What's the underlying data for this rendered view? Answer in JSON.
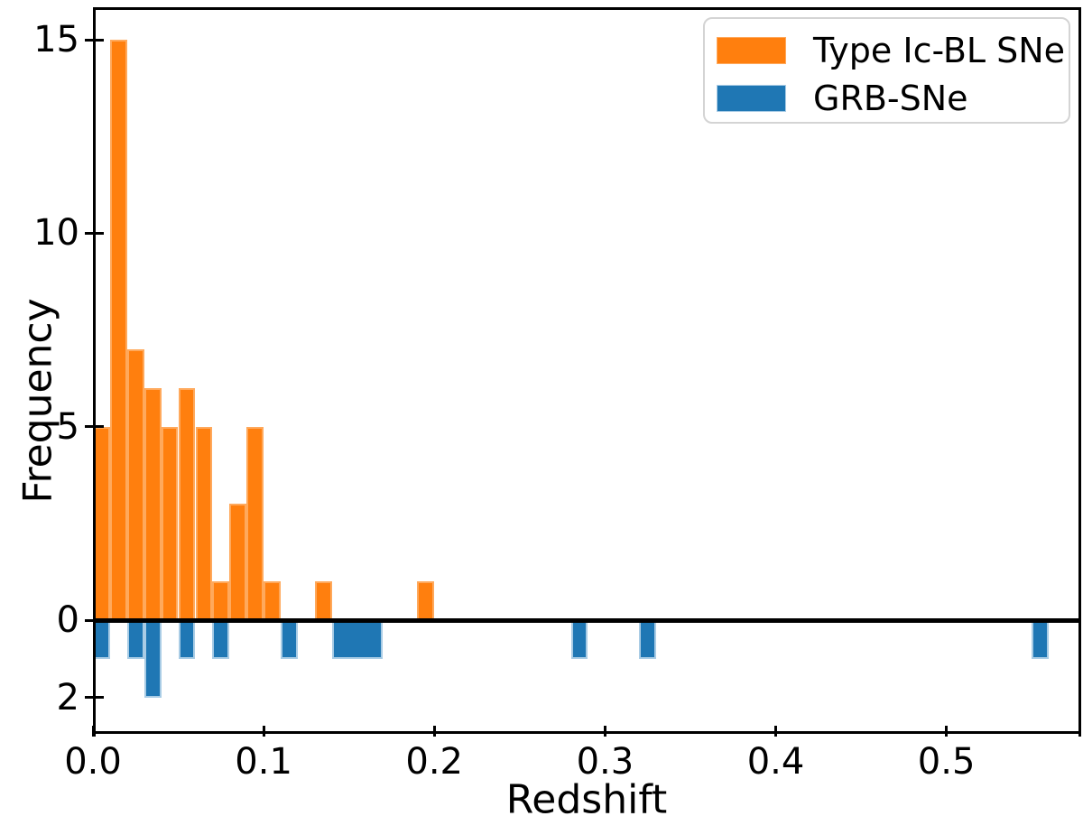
{
  "figure": {
    "background": "#ffffff",
    "xlabel": "Redshift",
    "ylabel": "Frequency",
    "x_ticks": [
      {
        "label": "0.0",
        "value": 0.0
      },
      {
        "label": "0.1",
        "value": 0.1
      },
      {
        "label": "0.2",
        "value": 0.2
      },
      {
        "label": "0.3",
        "value": 0.3
      },
      {
        "label": "0.4",
        "value": 0.4
      },
      {
        "label": "0.5",
        "value": 0.5
      }
    ],
    "y_ticks": [
      {
        "label": "15",
        "value": 15
      },
      {
        "label": "10",
        "value": 10
      },
      {
        "label": "5",
        "value": 5
      },
      {
        "label": "0",
        "value": 0
      },
      {
        "label": "2",
        "value": -2
      }
    ],
    "zero_line_color": "#000000",
    "spine_color": "#000000"
  },
  "legend": {
    "items": [
      {
        "label": "Type Ic-BL SNe",
        "color": "#ff7f0e",
        "edge": "#ffa95c"
      },
      {
        "label": "GRB-SNe",
        "color": "#1f77b4",
        "edge": "#a9cce5"
      }
    ]
  },
  "chart_data": {
    "type": "bar",
    "subtype": "mirrored-histogram",
    "title": "",
    "xlabel": "Redshift",
    "ylabel": "Frequency",
    "bin_width": 0.01,
    "xlim": [
      0.0,
      0.579
    ],
    "ylim": [
      -2.94,
      15.84
    ],
    "grid": false,
    "legend_position": "upper right",
    "series": [
      {
        "name": "Type Ic-BL SNe",
        "color": "#ff7f0e",
        "edge_color": "#ffa95c",
        "direction": "up",
        "bins": [
          {
            "x0": 0.0,
            "x1": 0.01,
            "count": 5
          },
          {
            "x0": 0.01,
            "x1": 0.02,
            "count": 15
          },
          {
            "x0": 0.02,
            "x1": 0.03,
            "count": 7
          },
          {
            "x0": 0.03,
            "x1": 0.04,
            "count": 6
          },
          {
            "x0": 0.04,
            "x1": 0.05,
            "count": 5
          },
          {
            "x0": 0.05,
            "x1": 0.06,
            "count": 6
          },
          {
            "x0": 0.06,
            "x1": 0.07,
            "count": 5
          },
          {
            "x0": 0.07,
            "x1": 0.08,
            "count": 1
          },
          {
            "x0": 0.08,
            "x1": 0.09,
            "count": 3
          },
          {
            "x0": 0.09,
            "x1": 0.1,
            "count": 5
          },
          {
            "x0": 0.1,
            "x1": 0.11,
            "count": 1
          },
          {
            "x0": 0.13,
            "x1": 0.14,
            "count": 1
          },
          {
            "x0": 0.19,
            "x1": 0.2,
            "count": 1
          }
        ]
      },
      {
        "name": "GRB-SNe",
        "color": "#1f77b4",
        "edge_color": "#a9cce5",
        "direction": "down",
        "bins": [
          {
            "x0": 0.0,
            "x1": 0.01,
            "count": 1
          },
          {
            "x0": 0.02,
            "x1": 0.03,
            "count": 1
          },
          {
            "x0": 0.03,
            "x1": 0.04,
            "count": 2
          },
          {
            "x0": 0.05,
            "x1": 0.06,
            "count": 1
          },
          {
            "x0": 0.07,
            "x1": 0.08,
            "count": 1
          },
          {
            "x0": 0.11,
            "x1": 0.12,
            "count": 1
          },
          {
            "x0": 0.14,
            "x1": 0.15,
            "count": 1
          },
          {
            "x0": 0.15,
            "x1": 0.16,
            "count": 1
          },
          {
            "x0": 0.16,
            "x1": 0.17,
            "count": 1
          },
          {
            "x0": 0.28,
            "x1": 0.29,
            "count": 1
          },
          {
            "x0": 0.32,
            "x1": 0.33,
            "count": 1
          },
          {
            "x0": 0.55,
            "x1": 0.56,
            "count": 1
          }
        ]
      }
    ]
  }
}
